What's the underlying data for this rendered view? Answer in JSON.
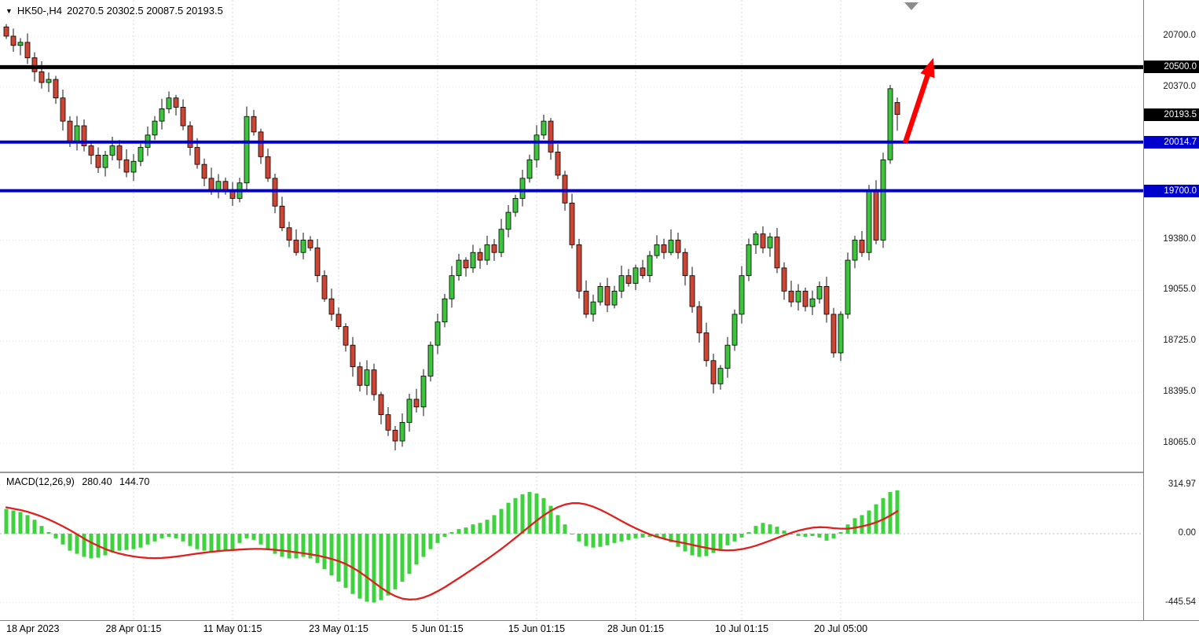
{
  "header": {
    "dropdown_icon": "▼",
    "symbol_period": "HK50-,H4",
    "ohlc_text": "20270.5 20302.5 20087.5 20193.5"
  },
  "colors": {
    "background": "#ffffff",
    "up": "#3cc43c",
    "down": "#cf4534",
    "wick": "#111111",
    "body_border": "#000000",
    "grid_h": "#e7e7e7",
    "grid_v": "#d9d9d9",
    "axis_border": "#808080",
    "line_black": "#000000",
    "line_blue": "#0000cd",
    "badge_text": "#ffffff",
    "macd_bar": "#3ed23e",
    "macd_signal": "#e01f1f",
    "macd_zero": "#bbbbbb",
    "arrow": "#ff0000",
    "text": "#000000"
  },
  "price_axis": {
    "ticks": [
      {
        "label": "20700.0",
        "value": 20700
      },
      {
        "label": "20370.0",
        "value": 20370
      },
      {
        "label": "19380.0",
        "value": 19380
      },
      {
        "label": "19055.0",
        "value": 19055
      },
      {
        "label": "18725.0",
        "value": 18725
      },
      {
        "label": "18395.0",
        "value": 18395
      },
      {
        "label": "18065.0",
        "value": 18065
      }
    ],
    "badges": [
      {
        "label": "20500.0",
        "value": 20500,
        "style": "black"
      },
      {
        "label": "20193.5",
        "value": 20193.5,
        "style": "black"
      },
      {
        "label": "20014.7",
        "value": 20014.7,
        "style": "blue"
      },
      {
        "label": "19700.0",
        "value": 19700,
        "style": "blue"
      }
    ]
  },
  "macd_axis": {
    "labels": [
      {
        "label": "314.97",
        "value": 314.97
      },
      {
        "label": "0.00",
        "value": 0
      },
      {
        "label": "-445.54",
        "value": -445.54
      }
    ]
  },
  "time_axis": {
    "labels": [
      {
        "text": "18 Apr 2023",
        "index": 0,
        "align": "left"
      },
      {
        "text": "28 Apr 01:15",
        "index": 18
      },
      {
        "text": "11 May 01:15",
        "index": 32
      },
      {
        "text": "23 May 01:15",
        "index": 47
      },
      {
        "text": "5 Jun 01:15",
        "index": 61
      },
      {
        "text": "15 Jun 01:15",
        "index": 75
      },
      {
        "text": "28 Jun 01:15",
        "index": 89
      },
      {
        "text": "10 Jul 01:15",
        "index": 104
      },
      {
        "text": "20 Jul 05:00",
        "index": 118
      }
    ]
  },
  "chart_data": {
    "type": "candlestick+macd",
    "symbol": "HK50-",
    "timeframe": "H4",
    "title": "HK50-,H4 20270.5 20302.5 20087.5 20193.5",
    "price_axis_range": {
      "top_tick": 20700,
      "bottom_tick": 18065
    },
    "last_candle_ohlc": {
      "open": 20270.5,
      "high": 20302.5,
      "low": 20087.5,
      "close": 20193.5
    },
    "closes": [
      20700,
      20640,
      20660,
      20560,
      20470,
      20400,
      20420,
      20300,
      20150,
      20020,
      20120,
      19990,
      19930,
      19850,
      19930,
      19990,
      19900,
      19820,
      19890,
      19980,
      20060,
      20150,
      20230,
      20300,
      20240,
      20120,
      19980,
      19870,
      19780,
      19700,
      19760,
      19700,
      19650,
      19750,
      20180,
      20080,
      19920,
      19780,
      19600,
      19460,
      19380,
      19300,
      19380,
      19330,
      19150,
      19000,
      18900,
      18820,
      18700,
      18560,
      18440,
      18540,
      18380,
      18250,
      18150,
      18080,
      18200,
      18350,
      18300,
      18500,
      18700,
      18850,
      19000,
      19150,
      19250,
      19200,
      19300,
      19250,
      19350,
      19300,
      19450,
      19560,
      19650,
      19780,
      19900,
      20060,
      20150,
      19950,
      19800,
      19620,
      19350,
      19050,
      18900,
      18980,
      19080,
      18960,
      19050,
      19150,
      19100,
      19200,
      19150,
      19280,
      19350,
      19300,
      19380,
      19300,
      19150,
      18950,
      18780,
      18600,
      18450,
      18550,
      18700,
      18900,
      19150,
      19350,
      19420,
      19330,
      19400,
      19200,
      19050,
      18980,
      19050,
      18950,
      19000,
      19080,
      18900,
      18650,
      18900,
      19250,
      19380,
      19300,
      19700,
      19380,
      19900,
      20360,
      20193.5
    ],
    "horizontal_lines": [
      {
        "name": "resistance-line-20500",
        "price": 20500.0,
        "color_key": "line_black",
        "width": 5
      },
      {
        "name": "support-line-20014",
        "price": 20014.7,
        "color_key": "line_blue",
        "width": 4
      },
      {
        "name": "support-line-19700",
        "price": 19700.0,
        "color_key": "line_blue",
        "width": 4
      }
    ],
    "annotation_arrow": {
      "from_price": 20010,
      "to_price": 20560,
      "note": "red up arrow from 20014.7 level toward 20500 resistance"
    },
    "macd": {
      "label": "MACD(12,26,9)",
      "macd_value": "280.40",
      "signal_value": "144.70",
      "axis_max": 314.97,
      "axis_min": -445.54,
      "histogram": [
        160,
        150,
        140,
        120,
        90,
        50,
        10,
        -30,
        -70,
        -110,
        -130,
        -150,
        -160,
        -155,
        -140,
        -120,
        -110,
        -105,
        -100,
        -90,
        -70,
        -50,
        -30,
        -20,
        -30,
        -50,
        -80,
        -100,
        -110,
        -115,
        -110,
        -105,
        -100,
        -60,
        -30,
        -40,
        -70,
        -100,
        -130,
        -150,
        -160,
        -160,
        -150,
        -160,
        -190,
        -230,
        -270,
        -310,
        -350,
        -390,
        -420,
        -440,
        -445,
        -430,
        -400,
        -360,
        -310,
        -260,
        -200,
        -150,
        -100,
        -60,
        -20,
        10,
        30,
        40,
        60,
        70,
        90,
        120,
        160,
        200,
        230,
        255,
        270,
        260,
        230,
        180,
        120,
        60,
        0,
        -50,
        -80,
        -90,
        -85,
        -75,
        -60,
        -50,
        -40,
        -30,
        -25,
        -20,
        -25,
        -35,
        -55,
        -85,
        -115,
        -140,
        -150,
        -145,
        -125,
        -100,
        -75,
        -50,
        -25,
        10,
        50,
        70,
        60,
        45,
        20,
        0,
        -15,
        -20,
        -15,
        -25,
        -45,
        -30,
        10,
        60,
        100,
        120,
        150,
        190,
        230,
        270,
        280.4
      ],
      "signal_keypoints": [
        [
          0,
          170
        ],
        [
          3,
          145
        ],
        [
          6,
          95
        ],
        [
          9,
          25
        ],
        [
          12,
          -60
        ],
        [
          15,
          -120
        ],
        [
          18,
          -150
        ],
        [
          21,
          -162
        ],
        [
          24,
          -150
        ],
        [
          27,
          -128
        ],
        [
          30,
          -112
        ],
        [
          33,
          -102
        ],
        [
          36,
          -96
        ],
        [
          39,
          -108
        ],
        [
          42,
          -126
        ],
        [
          45,
          -148
        ],
        [
          48,
          -190
        ],
        [
          50,
          -245
        ],
        [
          52,
          -315
        ],
        [
          54,
          -385
        ],
        [
          56,
          -428
        ],
        [
          58,
          -432
        ],
        [
          60,
          -400
        ],
        [
          62,
          -348
        ],
        [
          64,
          -288
        ],
        [
          66,
          -228
        ],
        [
          68,
          -165
        ],
        [
          70,
          -100
        ],
        [
          72,
          -28
        ],
        [
          74,
          48
        ],
        [
          76,
          122
        ],
        [
          78,
          178
        ],
        [
          80,
          205
        ],
        [
          82,
          196
        ],
        [
          84,
          158
        ],
        [
          86,
          108
        ],
        [
          88,
          56
        ],
        [
          90,
          12
        ],
        [
          92,
          -22
        ],
        [
          94,
          -46
        ],
        [
          96,
          -62
        ],
        [
          98,
          -82
        ],
        [
          100,
          -102
        ],
        [
          102,
          -112
        ],
        [
          104,
          -104
        ],
        [
          106,
          -80
        ],
        [
          108,
          -46
        ],
        [
          110,
          -10
        ],
        [
          112,
          22
        ],
        [
          114,
          42
        ],
        [
          116,
          46
        ],
        [
          117,
          34
        ],
        [
          119,
          28
        ],
        [
          121,
          44
        ],
        [
          123,
          70
        ],
        [
          124,
          90
        ],
        [
          125,
          112
        ],
        [
          126,
          144.7
        ]
      ]
    }
  }
}
